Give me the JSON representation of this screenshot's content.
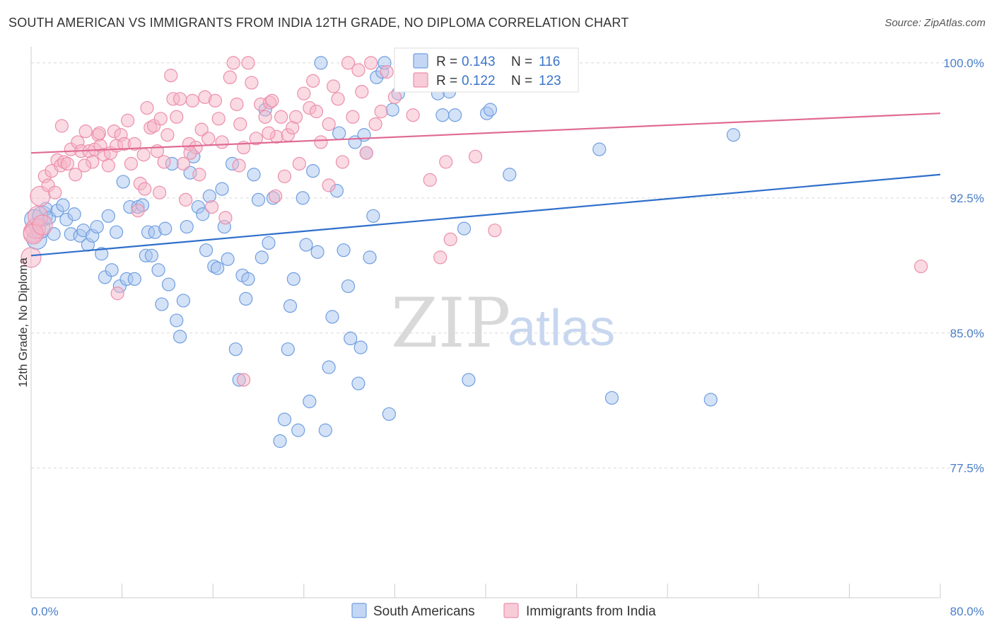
{
  "header": {
    "title": "SOUTH AMERICAN VS IMMIGRANTS FROM INDIA 12TH GRADE, NO DIPLOMA CORRELATION CHART",
    "source": "Source: ZipAtlas.com"
  },
  "watermark": {
    "zip": "ZIP",
    "atlas": "atlas"
  },
  "colors": {
    "blue_fill": "#a9c6f0",
    "blue_stroke": "#6f9ee0",
    "blue_line": "#2f6fcb",
    "pink_fill": "#f5b5c8",
    "pink_stroke": "#ec8fab",
    "pink_line": "#e06a93",
    "axis_text": "#4a7fc8",
    "grid": "#d8d8d8"
  },
  "legend": {
    "r_label": "R =",
    "n_label": "N =",
    "series": [
      {
        "name": "South Americans",
        "r": "0.143",
        "n": "116",
        "color": "blue"
      },
      {
        "name": "Immigrants from India",
        "r": "0.122",
        "n": "123",
        "color": "pink"
      }
    ]
  },
  "chart_data": {
    "type": "scatter",
    "title": "SOUTH AMERICAN VS IMMIGRANTS FROM INDIA 12TH GRADE, NO DIPLOMA CORRELATION CHART",
    "ylabel": "12th Grade, No Diploma",
    "xlabel": "",
    "x_tick_labels": [
      "0.0%",
      "80.0%"
    ],
    "y_tick_labels": [
      "100.0%",
      "92.5%",
      "85.0%",
      "77.5%"
    ],
    "y_ticks": [
      100.0,
      92.5,
      85.0,
      77.5
    ],
    "xlim": [
      0,
      80
    ],
    "ylim": [
      70.3,
      100.9
    ],
    "grid": true,
    "legend_position": "top-center",
    "trendlines": [
      {
        "series": "South Americans",
        "x": [
          0,
          80
        ],
        "y": [
          89.3,
          93.8
        ]
      },
      {
        "series": "Immigrants from India",
        "x": [
          0,
          80
        ],
        "y": [
          95.0,
          97.2
        ]
      }
    ],
    "series": [
      {
        "name": "South Americans",
        "points": [
          [
            0.3,
            91.3
          ],
          [
            0.5,
            90.2
          ],
          [
            0.8,
            90.8
          ],
          [
            1.0,
            91.5
          ],
          [
            1.3,
            91.9
          ],
          [
            1.6,
            91.4
          ],
          [
            2.0,
            90.5
          ],
          [
            2.3,
            91.8
          ],
          [
            2.8,
            92.1
          ],
          [
            3.1,
            91.3
          ],
          [
            3.5,
            90.5
          ],
          [
            3.8,
            91.6
          ],
          [
            4.3,
            90.4
          ],
          [
            4.6,
            90.7
          ],
          [
            5.0,
            89.9
          ],
          [
            5.4,
            90.4
          ],
          [
            5.8,
            90.9
          ],
          [
            6.2,
            89.4
          ],
          [
            6.5,
            88.1
          ],
          [
            6.8,
            91.5
          ],
          [
            7.1,
            88.5
          ],
          [
            7.5,
            90.6
          ],
          [
            7.8,
            87.6
          ],
          [
            8.1,
            93.4
          ],
          [
            8.4,
            88.0
          ],
          [
            8.7,
            92.0
          ],
          [
            9.1,
            88.0
          ],
          [
            9.4,
            92.0
          ],
          [
            9.8,
            92.1
          ],
          [
            10.1,
            89.3
          ],
          [
            10.3,
            90.6
          ],
          [
            10.6,
            89.3
          ],
          [
            10.9,
            90.6
          ],
          [
            11.2,
            88.5
          ],
          [
            11.5,
            86.6
          ],
          [
            11.8,
            90.8
          ],
          [
            12.1,
            87.7
          ],
          [
            12.4,
            94.4
          ],
          [
            12.8,
            85.7
          ],
          [
            13.1,
            84.8
          ],
          [
            13.4,
            86.8
          ],
          [
            13.7,
            90.9
          ],
          [
            14.0,
            93.9
          ],
          [
            14.3,
            94.8
          ],
          [
            14.7,
            92.0
          ],
          [
            15.1,
            91.6
          ],
          [
            15.4,
            89.6
          ],
          [
            15.7,
            92.6
          ],
          [
            16.1,
            88.7
          ],
          [
            16.4,
            88.6
          ],
          [
            16.8,
            93.0
          ],
          [
            17.0,
            90.9
          ],
          [
            17.3,
            89.1
          ],
          [
            17.7,
            94.4
          ],
          [
            18.0,
            84.1
          ],
          [
            18.3,
            82.4
          ],
          [
            18.6,
            88.2
          ],
          [
            18.9,
            86.9
          ],
          [
            19.1,
            88.0
          ],
          [
            19.6,
            93.8
          ],
          [
            20.0,
            92.4
          ],
          [
            20.3,
            89.2
          ],
          [
            20.6,
            97.4
          ],
          [
            20.9,
            90.0
          ],
          [
            21.3,
            92.5
          ],
          [
            21.9,
            79.0
          ],
          [
            22.3,
            80.2
          ],
          [
            22.6,
            84.1
          ],
          [
            22.8,
            86.5
          ],
          [
            23.1,
            88.0
          ],
          [
            23.5,
            79.6
          ],
          [
            23.9,
            92.5
          ],
          [
            24.2,
            89.9
          ],
          [
            24.5,
            81.2
          ],
          [
            24.8,
            94.0
          ],
          [
            25.2,
            89.5
          ],
          [
            25.5,
            100.0
          ],
          [
            25.9,
            79.6
          ],
          [
            26.2,
            83.1
          ],
          [
            26.5,
            85.9
          ],
          [
            26.9,
            92.9
          ],
          [
            27.1,
            96.1
          ],
          [
            27.5,
            89.6
          ],
          [
            27.9,
            87.6
          ],
          [
            28.1,
            84.7
          ],
          [
            28.5,
            95.6
          ],
          [
            28.8,
            82.2
          ],
          [
            29.0,
            84.2
          ],
          [
            29.3,
            96.0
          ],
          [
            29.5,
            95.0
          ],
          [
            29.8,
            89.2
          ],
          [
            30.1,
            91.5
          ],
          [
            30.4,
            99.2
          ],
          [
            30.9,
            99.5
          ],
          [
            31.1,
            100.0
          ],
          [
            31.5,
            80.5
          ],
          [
            31.8,
            97.4
          ],
          [
            32.3,
            98.3
          ],
          [
            33.1,
            100.0
          ],
          [
            34.0,
            99.3
          ],
          [
            35.8,
            98.3
          ],
          [
            36.2,
            97.1
          ],
          [
            36.8,
            98.4
          ],
          [
            37.3,
            97.1
          ],
          [
            38.1,
            90.8
          ],
          [
            38.5,
            82.4
          ],
          [
            40.1,
            97.2
          ],
          [
            40.4,
            97.4
          ],
          [
            42.1,
            93.8
          ],
          [
            50.0,
            95.2
          ],
          [
            51.1,
            81.4
          ],
          [
            59.8,
            81.3
          ],
          [
            61.8,
            96.0
          ]
        ]
      },
      {
        "name": "Immigrants from India",
        "points": [
          [
            0.0,
            89.2
          ],
          [
            0.2,
            90.6
          ],
          [
            0.4,
            90.8
          ],
          [
            0.6,
            91.5
          ],
          [
            0.8,
            92.6
          ],
          [
            1.2,
            93.7
          ],
          [
            1.5,
            93.2
          ],
          [
            1.8,
            94.0
          ],
          [
            2.1,
            92.8
          ],
          [
            2.3,
            94.6
          ],
          [
            2.6,
            94.3
          ],
          [
            2.9,
            94.5
          ],
          [
            3.2,
            94.4
          ],
          [
            3.5,
            95.2
          ],
          [
            3.9,
            93.8
          ],
          [
            4.1,
            95.6
          ],
          [
            4.4,
            95.1
          ],
          [
            4.8,
            96.2
          ],
          [
            5.1,
            95.1
          ],
          [
            5.4,
            94.5
          ],
          [
            5.6,
            95.2
          ],
          [
            5.9,
            96.0
          ],
          [
            6.1,
            95.4
          ],
          [
            6.4,
            94.9
          ],
          [
            6.8,
            94.3
          ],
          [
            7.0,
            95.0
          ],
          [
            7.3,
            96.2
          ],
          [
            7.5,
            95.4
          ],
          [
            7.9,
            96.0
          ],
          [
            8.2,
            95.5
          ],
          [
            8.5,
            96.8
          ],
          [
            8.8,
            94.4
          ],
          [
            9.1,
            95.5
          ],
          [
            9.4,
            91.8
          ],
          [
            9.6,
            93.3
          ],
          [
            9.9,
            94.9
          ],
          [
            10.2,
            97.5
          ],
          [
            10.5,
            96.4
          ],
          [
            10.8,
            96.5
          ],
          [
            11.1,
            95.1
          ],
          [
            11.4,
            96.9
          ],
          [
            11.7,
            94.5
          ],
          [
            12.0,
            96.0
          ],
          [
            12.3,
            99.3
          ],
          [
            12.5,
            98.0
          ],
          [
            12.8,
            97.0
          ],
          [
            13.1,
            98.0
          ],
          [
            13.4,
            94.4
          ],
          [
            13.6,
            92.4
          ],
          [
            13.9,
            95.5
          ],
          [
            14.2,
            97.9
          ],
          [
            14.5,
            95.3
          ],
          [
            14.8,
            93.8
          ],
          [
            15.0,
            96.3
          ],
          [
            15.3,
            98.1
          ],
          [
            15.6,
            95.8
          ],
          [
            15.9,
            92.0
          ],
          [
            16.2,
            97.9
          ],
          [
            16.5,
            96.9
          ],
          [
            16.8,
            95.6
          ],
          [
            17.1,
            91.4
          ],
          [
            17.5,
            99.2
          ],
          [
            17.8,
            100.0
          ],
          [
            18.1,
            97.7
          ],
          [
            18.4,
            96.6
          ],
          [
            18.7,
            95.3
          ],
          [
            19.1,
            100.0
          ],
          [
            19.4,
            98.9
          ],
          [
            19.8,
            95.8
          ],
          [
            20.2,
            97.7
          ],
          [
            20.6,
            97.0
          ],
          [
            21.0,
            97.8
          ],
          [
            21.2,
            97.9
          ],
          [
            21.6,
            95.9
          ],
          [
            22.0,
            97.0
          ],
          [
            22.3,
            93.7
          ],
          [
            22.6,
            96.0
          ],
          [
            23.0,
            96.4
          ],
          [
            23.3,
            97.0
          ],
          [
            23.6,
            94.4
          ],
          [
            24.0,
            98.3
          ],
          [
            24.5,
            97.5
          ],
          [
            24.8,
            99.0
          ],
          [
            25.1,
            97.3
          ],
          [
            25.5,
            95.6
          ],
          [
            26.2,
            96.6
          ],
          [
            26.6,
            98.7
          ],
          [
            27.0,
            98.0
          ],
          [
            27.4,
            94.5
          ],
          [
            27.9,
            100.0
          ],
          [
            28.3,
            97.0
          ],
          [
            28.8,
            99.6
          ],
          [
            29.1,
            98.4
          ],
          [
            29.5,
            95.0
          ],
          [
            29.9,
            100.0
          ],
          [
            30.3,
            96.6
          ],
          [
            30.8,
            97.3
          ],
          [
            31.3,
            99.5
          ],
          [
            32.0,
            98.1
          ],
          [
            32.6,
            99.0
          ],
          [
            33.6,
            97.1
          ],
          [
            35.1,
            93.5
          ],
          [
            36.0,
            89.2
          ],
          [
            36.5,
            94.5
          ],
          [
            36.9,
            90.2
          ],
          [
            39.1,
            94.8
          ],
          [
            40.8,
            90.7
          ],
          [
            78.3,
            88.7
          ],
          [
            0.2,
            90.5
          ],
          [
            1.0,
            91.0
          ],
          [
            7.6,
            87.2
          ],
          [
            18.7,
            82.4
          ],
          [
            18.3,
            94.3
          ],
          [
            6.0,
            96.1
          ],
          [
            4.7,
            94.3
          ],
          [
            2.7,
            96.5
          ],
          [
            11.3,
            92.8
          ],
          [
            14.0,
            95.0
          ],
          [
            26.2,
            93.2
          ],
          [
            10.0,
            93.0
          ],
          [
            20.9,
            96.1
          ],
          [
            21.5,
            92.6
          ]
        ]
      }
    ]
  }
}
